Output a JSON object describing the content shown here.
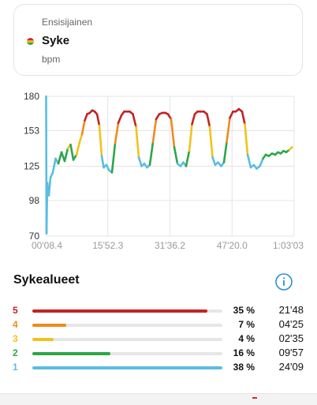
{
  "card": {
    "eyebrow": "Ensisijainen",
    "metric": "Syke",
    "unit": "bpm"
  },
  "chart_data": {
    "type": "line",
    "xlabel": "",
    "ylabel": "",
    "yticks": [
      "180",
      "153",
      "125",
      "98",
      "70"
    ],
    "ylim": [
      70,
      180
    ],
    "xticks": [
      "00'08.4",
      "15'52.3",
      "31'36.2",
      "47'20.0",
      "1:03'03"
    ],
    "xlim": [
      0,
      63
    ],
    "grid": true,
    "zone_colors": {
      "z5": "#c42323",
      "z4": "#f08a1d",
      "z3": "#f1c21b",
      "z2": "#2ea64a",
      "z1": "#5bbde0"
    },
    "series": [
      {
        "x": [
          0.1,
          0.2,
          0.4,
          0.8,
          1.2,
          1.8,
          2.5,
          3.2,
          4.0,
          4.8,
          5.6,
          6.3,
          7.0,
          7.8,
          8.5,
          9.2,
          9.9,
          10.5,
          11.2,
          11.8,
          12.4,
          13.0,
          13.6,
          14.2,
          14.7,
          15.4,
          16.0,
          16.8,
          17.6,
          18.4,
          19.2,
          19.9,
          20.6,
          21.3,
          22.1,
          22.9,
          23.6,
          24.3,
          25.0,
          25.7,
          26.4,
          27.2,
          28.0,
          28.8,
          29.6,
          30.3,
          31.0,
          31.8,
          32.6,
          33.4,
          34.2,
          34.9,
          35.6,
          36.4,
          37.1,
          37.8,
          38.5,
          39.3,
          40.1,
          40.9,
          41.6,
          42.3,
          43.0,
          43.7,
          44.5,
          45.2,
          45.9,
          46.7,
          47.5,
          48.2,
          49.0,
          49.8,
          50.5,
          51.2,
          52.0,
          52.8,
          53.5,
          54.3,
          55.1,
          55.8,
          56.6,
          57.4,
          58.2,
          58.9,
          59.6,
          60.3,
          61.0,
          61.8,
          62.5
        ],
        "y": [
          180,
          72,
          112,
          102,
          116,
          120,
          131,
          127,
          136,
          129,
          139,
          142,
          130,
          134,
          143,
          150,
          161,
          166,
          167,
          169,
          168,
          166,
          157,
          133,
          124,
          126,
          122,
          120,
          143,
          159,
          165,
          168,
          168,
          168,
          166,
          156,
          132,
          125,
          127,
          124,
          126,
          144,
          162,
          166,
          167,
          167,
          166,
          162,
          140,
          127,
          125,
          128,
          125,
          137,
          158,
          166,
          168,
          168,
          168,
          166,
          156,
          132,
          126,
          128,
          125,
          128,
          144,
          163,
          168,
          168,
          170,
          168,
          158,
          134,
          124,
          126,
          123,
          125,
          131,
          134,
          133,
          135,
          134,
          136,
          135,
          137,
          136,
          138,
          140
        ]
      }
    ]
  },
  "zones": {
    "title": "Sykealueet",
    "items": [
      {
        "num": "5",
        "pct": "35 %",
        "time": "21'48",
        "fraction": 0.92,
        "color": "#c42323"
      },
      {
        "num": "4",
        "pct": "7 %",
        "time": "04'25",
        "fraction": 0.18,
        "color": "#ee8a1c"
      },
      {
        "num": "3",
        "pct": "4 %",
        "time": "02'35",
        "fraction": 0.11,
        "color": "#f2c21b"
      },
      {
        "num": "2",
        "pct": "16 %",
        "time": "09'57",
        "fraction": 0.41,
        "color": "#2ea64a"
      },
      {
        "num": "1",
        "pct": "38 %",
        "time": "24'09",
        "fraction": 1.0,
        "color": "#5bbde0"
      }
    ]
  },
  "colors": {
    "info": "#2b8fd6",
    "grid": "#e4e4e4",
    "tick": "#9a9a9a"
  }
}
